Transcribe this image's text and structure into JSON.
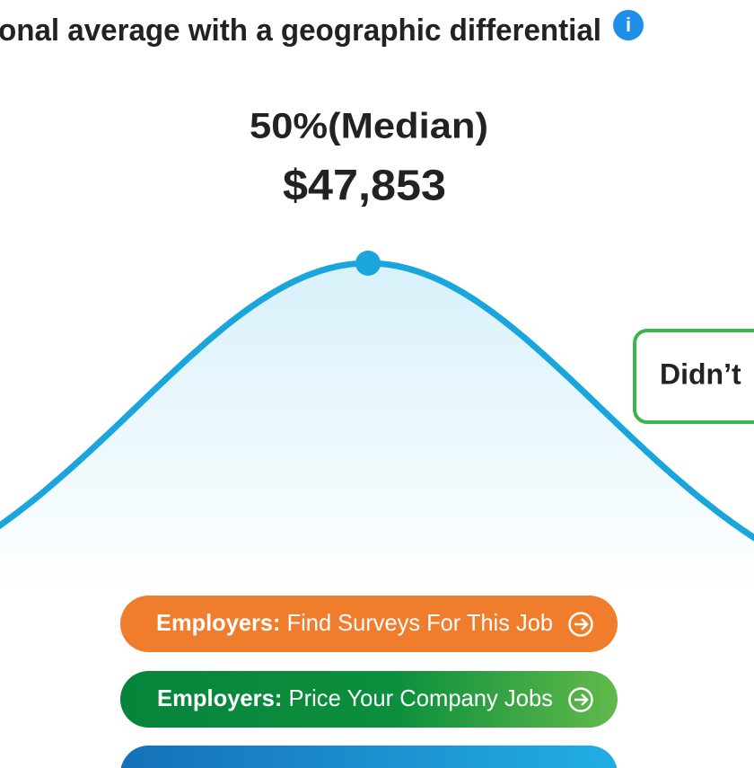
{
  "header": {
    "title": "onal average with a geographic differential",
    "info_icon": "i"
  },
  "median": {
    "label": "50%(Median)",
    "value": "$47,853"
  },
  "callout": {
    "text": "Didn’t"
  },
  "buttons": [
    {
      "lead": "Employers:",
      "text": "Find Surveys For This Job"
    },
    {
      "lead": "Employers:",
      "text": "Price Your Company Jobs"
    }
  ]
}
